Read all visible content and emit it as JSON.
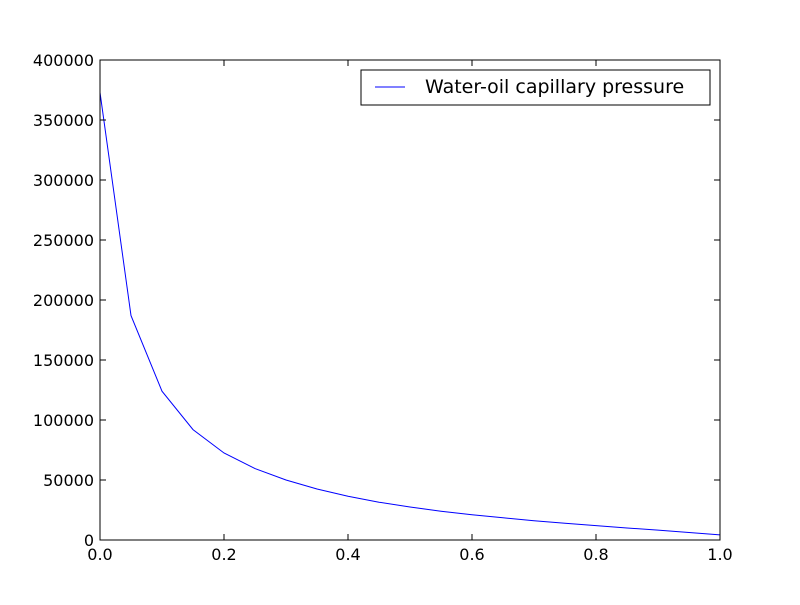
{
  "chart_data": {
    "type": "line",
    "title": "",
    "xlabel": "",
    "ylabel": "",
    "xlim": [
      0,
      1.0
    ],
    "ylim": [
      0,
      400000
    ],
    "x_ticks": [
      0.0,
      0.2,
      0.4,
      0.6,
      0.8,
      1.0
    ],
    "x_tick_labels": [
      "0.0",
      "0.2",
      "0.4",
      "0.6",
      "0.8",
      "1.0"
    ],
    "y_ticks": [
      0,
      50000,
      100000,
      150000,
      200000,
      250000,
      300000,
      350000,
      400000
    ],
    "y_tick_labels": [
      "0",
      "50000",
      "100000",
      "150000",
      "200000",
      "250000",
      "300000",
      "350000",
      "400000"
    ],
    "grid": false,
    "legend": {
      "position": "upper-right"
    },
    "series": [
      {
        "name": "Water-oil capillary pressure",
        "color": "#0000ff",
        "x": [
          0.0,
          0.05,
          0.1,
          0.15,
          0.2,
          0.25,
          0.3,
          0.35,
          0.4,
          0.45,
          0.5,
          0.55,
          0.6,
          0.65,
          0.7,
          0.75,
          0.8,
          0.85,
          0.9,
          0.95,
          1.0
        ],
        "y": [
          373000,
          187000,
          124000,
          92000,
          72500,
          59500,
          50000,
          42500,
          36500,
          31500,
          27500,
          24000,
          21000,
          18500,
          16000,
          14000,
          12000,
          10000,
          8200,
          6200,
          4300
        ]
      }
    ]
  }
}
